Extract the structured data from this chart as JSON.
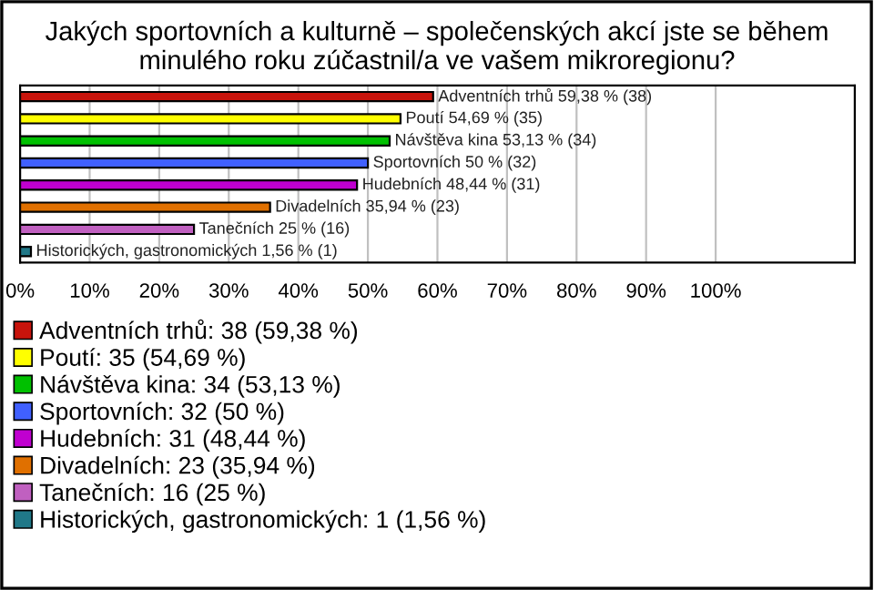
{
  "chart_data": {
    "type": "bar",
    "orientation": "horizontal",
    "title": "Jakých sportovních a kulturně – společenských akcí jste se během minulého roku zúčastnil/a ve vašem mikroregionu?",
    "categories": [
      null,
      null,
      null,
      null,
      null,
      null,
      null,
      null
    ],
    "series": [
      {
        "name": "Adventních trhů: 38 (59,38 %)",
        "color": "#c8140c",
        "values": [
          59.38,
          null,
          null,
          null,
          null,
          null,
          null,
          null
        ],
        "value_labels": [
          "Adventních trhů 59,38 % (38)",
          null,
          null,
          null,
          null,
          null,
          null,
          null
        ]
      },
      {
        "name": "Poutí: 35 (54,69 %)",
        "color": "#ffff00",
        "values": [
          null,
          54.69,
          null,
          null,
          null,
          null,
          null,
          null
        ],
        "value_labels": [
          null,
          "Poutí 54,69 % (35)",
          null,
          null,
          null,
          null,
          null,
          null
        ]
      },
      {
        "name": "Návštěva kina: 34 (53,13 %)",
        "color": "#00c000",
        "values": [
          null,
          null,
          53.13,
          null,
          null,
          null,
          null,
          null
        ],
        "value_labels": [
          null,
          null,
          "Návštěva kina 53,13 % (34)",
          null,
          null,
          null,
          null,
          null
        ]
      },
      {
        "name": "Sportovních: 32 (50 %)",
        "color": "#4060ff",
        "values": [
          null,
          null,
          null,
          50,
          null,
          null,
          null,
          null
        ],
        "value_labels": [
          null,
          null,
          null,
          "Sportovních 50 % (32)",
          null,
          null,
          null,
          null
        ]
      },
      {
        "name": "Hudebních: 31 (48,44 %)",
        "color": "#c000d0",
        "values": [
          null,
          null,
          null,
          null,
          48.44,
          null,
          null,
          null
        ],
        "value_labels": [
          null,
          null,
          null,
          null,
          "Hudebních 48,44 % (31)",
          null,
          null,
          null
        ]
      },
      {
        "name": "Divadelních: 23 (35,94 %)",
        "color": "#e07000",
        "values": [
          null,
          null,
          null,
          null,
          null,
          35.94,
          null,
          null
        ],
        "value_labels": [
          null,
          null,
          null,
          null,
          null,
          "Divadelních 35,94 % (23)",
          null,
          null
        ]
      },
      {
        "name": "Tanečních: 16 (25 %)",
        "color": "#c060c0",
        "values": [
          null,
          null,
          null,
          null,
          null,
          null,
          25,
          null
        ],
        "value_labels": [
          null,
          null,
          null,
          null,
          null,
          null,
          "Tanečních 25 % (16)",
          null
        ]
      },
      {
        "name": "Historických, gastronomických: 1 (1,56 %)",
        "color": "#207888",
        "values": [
          null,
          null,
          null,
          null,
          null,
          null,
          null,
          1.56
        ],
        "value_labels": [
          null,
          null,
          null,
          null,
          null,
          null,
          null,
          "Historických, gastronomických 1,56 % (1)"
        ]
      }
    ],
    "xlim": [
      0,
      120
    ],
    "xticks": [
      {
        "value": 0,
        "label": "0%"
      },
      {
        "value": 10,
        "label": "10%"
      },
      {
        "value": 20,
        "label": "20%"
      },
      {
        "value": 30,
        "label": "30%"
      },
      {
        "value": 40,
        "label": "40%"
      },
      {
        "value": 50,
        "label": "50%"
      },
      {
        "value": 60,
        "label": "60%"
      },
      {
        "value": 70,
        "label": "70%"
      },
      {
        "value": 80,
        "label": "80%"
      },
      {
        "value": 90,
        "label": "90%"
      },
      {
        "value": 100,
        "label": "100%"
      }
    ],
    "grid": "x",
    "legend": "bottom"
  }
}
